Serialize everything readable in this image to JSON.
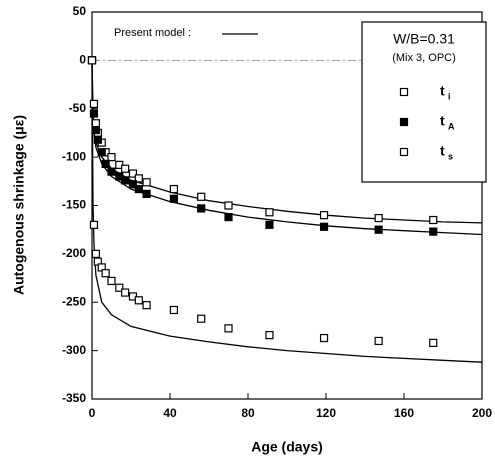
{
  "chart_data": {
    "type": "scatter",
    "x_label": "Age (days)",
    "y_label": "Autogenous shrinkage (με)",
    "xlim": [
      0,
      200
    ],
    "xticks": [
      0,
      40,
      80,
      120,
      160,
      200
    ],
    "ylim": [
      -350,
      50
    ],
    "yticks": [
      -350,
      -300,
      -250,
      -200,
      -150,
      -100,
      -50,
      0,
      50
    ],
    "hline": 0,
    "legend_title": "W/B=0.31",
    "legend_subtitle": "(Mix 3, OPC)",
    "legend": "upper right",
    "x": [
      0,
      1,
      2,
      3,
      5,
      7,
      10,
      14,
      17,
      21,
      24,
      28,
      42,
      56,
      70,
      91,
      119,
      147,
      175
    ],
    "series": [
      {
        "name": "t",
        "subscript": "i",
        "color": "#000000",
        "marker": "open",
        "values": [
          0,
          -45,
          -65,
          -75,
          -85,
          -95,
          -100,
          -108,
          -112,
          -117,
          -122,
          -126,
          -133,
          -141,
          -150,
          -157,
          -160,
          -163,
          -165
        ]
      },
      {
        "name": "t",
        "subscript": "A",
        "color": "#000000",
        "marker": "filled",
        "values": [
          0,
          -55,
          -72,
          -82,
          -95,
          -107,
          -115,
          -120,
          -124,
          -128,
          -133,
          -138,
          -143,
          -153,
          -162,
          -170,
          -172,
          -175,
          -177
        ]
      },
      {
        "name": "t",
        "subscript": "s",
        "color": "#000000",
        "marker": "open",
        "values": [
          0,
          -170,
          -200,
          -208,
          -214,
          -220,
          -228,
          -235,
          -240,
          -244,
          -248,
          -253,
          -258,
          -267,
          -277,
          -284,
          -287,
          -290,
          -292
        ]
      }
    ],
    "model_label": "Present model :",
    "model_x": [
      0,
      0.5,
      1,
      2,
      5,
      10,
      20,
      40,
      60,
      80,
      100,
      120,
      140,
      160,
      180,
      200
    ],
    "model_curves": [
      {
        "color": "#000000",
        "values": [
          0,
          -55,
          -70,
          -85,
          -100,
          -112,
          -124,
          -136,
          -145,
          -151,
          -156,
          -160,
          -163,
          -165,
          -167,
          -168
        ]
      },
      {
        "color": "#000000",
        "values": [
          0,
          -60,
          -75,
          -90,
          -107,
          -120,
          -133,
          -146,
          -155,
          -162,
          -167,
          -171,
          -174,
          -176,
          -178,
          -180
        ]
      },
      {
        "color": "#000000",
        "values": [
          0,
          -150,
          -190,
          -222,
          -250,
          -263,
          -275,
          -285,
          -291,
          -296,
          -300,
          -303,
          -306,
          -308,
          -310,
          -312
        ]
      }
    ]
  }
}
